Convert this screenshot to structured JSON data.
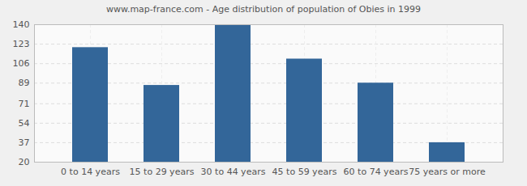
{
  "chart_data": {
    "type": "bar",
    "title": "www.map-france.com - Age distribution of population of Obies in 1999",
    "categories": [
      "0 to 14 years",
      "15 to 29 years",
      "30 to 44 years",
      "45 to 59 years",
      "60 to 74 years",
      "75 years or more"
    ],
    "values": [
      120,
      87,
      140,
      110,
      89,
      37
    ],
    "color": "#336699",
    "ylim": [
      20,
      140
    ],
    "yticks": [
      20,
      37,
      54,
      71,
      89,
      106,
      123,
      140
    ],
    "grid": true
  }
}
